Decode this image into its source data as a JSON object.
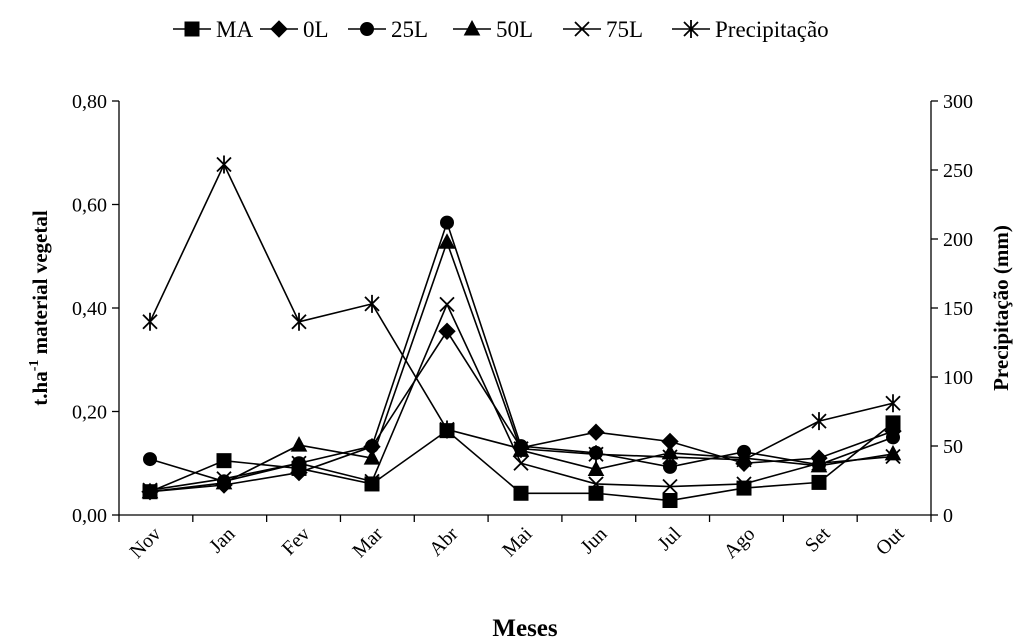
{
  "chart_data": {
    "type": "line",
    "title": "",
    "xlabel": "Meses",
    "ylabel": {
      "prefix": "t.ha",
      "superscript": "-1",
      "suffix": " material vegetal"
    },
    "y2label": "Precipitação (mm)",
    "categories": [
      "Nov",
      "Jan",
      "Fev",
      "Mar",
      "Abr",
      "Mai",
      "Jun",
      "Jul",
      "Ago",
      "Set",
      "Out"
    ],
    "ylim": [
      0,
      0.8
    ],
    "yticks": [
      "0,00",
      "0,20",
      "0,40",
      "0,60",
      "0,80"
    ],
    "yticks_values": [
      0,
      0.2,
      0.4,
      0.6,
      0.8
    ],
    "y2lim": [
      0,
      300
    ],
    "y2ticks": [
      "0",
      "50",
      "100",
      "150",
      "200",
      "250",
      "300"
    ],
    "y2ticks_values": [
      0,
      50,
      100,
      150,
      200,
      250,
      300
    ],
    "legend_position": "top",
    "grid": false,
    "series": [
      {
        "name": "MA",
        "marker": "square",
        "axis": "left",
        "values": [
          0.045,
          0.105,
          0.09,
          0.06,
          0.163,
          0.042,
          0.042,
          0.028,
          0.052,
          0.063,
          0.178
        ]
      },
      {
        "name": "0L",
        "marker": "diamond",
        "axis": "left",
        "values": [
          0.045,
          0.058,
          0.082,
          0.132,
          0.355,
          0.13,
          0.16,
          0.142,
          0.1,
          0.11,
          0.162
        ]
      },
      {
        "name": "25L",
        "marker": "circle",
        "axis": "left",
        "values": [
          0.108,
          0.065,
          0.1,
          0.133,
          0.565,
          0.133,
          0.12,
          0.093,
          0.122,
          0.097,
          0.15
        ]
      },
      {
        "name": "50L",
        "marker": "triangle",
        "axis": "left",
        "values": [
          0.045,
          0.062,
          0.135,
          0.11,
          0.527,
          0.125,
          0.088,
          0.12,
          0.11,
          0.095,
          0.118
        ]
      },
      {
        "name": "75L",
        "marker": "x",
        "axis": "left",
        "values": [
          0.048,
          0.07,
          0.1,
          0.065,
          0.407,
          0.1,
          0.06,
          0.055,
          0.06,
          0.1,
          0.113
        ]
      },
      {
        "name": "Precipitação",
        "marker": "asterisk",
        "axis": "right",
        "values": [
          140,
          254,
          140,
          153,
          62,
          48,
          44,
          42,
          40,
          68,
          81
        ]
      }
    ]
  }
}
